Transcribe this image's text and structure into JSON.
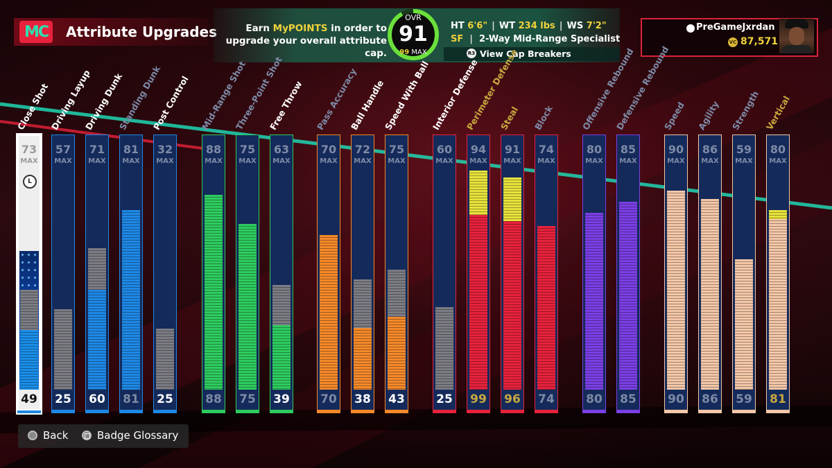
{
  "header": {
    "logo": "MC",
    "title": "Attribute Upgrades",
    "earn_pre": "Earn ",
    "earn_highlight": "MyPOINTS",
    "earn_post": " in order to upgrade your overall attribute cap.",
    "ovr_label": "OVR",
    "ovr_value": "91",
    "ovr_max_num": "99",
    "ovr_max_label": "MAX",
    "ht_label": "HT",
    "ht_value": "6'6\"",
    "wt_label": "WT",
    "wt_value": "234 lbs",
    "ws_label": "WS",
    "ws_value": "7'2\"",
    "position": "SF",
    "archetype": "2-Way Mid-Range Specialist",
    "cap_button_icon": "R3",
    "cap_button_label": "View Cap Breakers"
  },
  "user": {
    "username": "PreGameJxrdan",
    "vc_icon": "VC",
    "vc_amount": "87,571"
  },
  "max_label": "MAX",
  "lstick_label": "L",
  "attributes": [
    {
      "name": "Close Shot",
      "max": 73,
      "current": 49,
      "base": 0,
      "color": "#1e88e5",
      "selected": true,
      "name_color": "#ffffff",
      "current_color": "#111111",
      "cap": 0
    },
    {
      "name": "Driving Layup",
      "max": 57,
      "current": 25,
      "base": 0,
      "color": "#1e88e5",
      "name_color": "#ffffff",
      "current_color": "#ffffff",
      "cap": 0
    },
    {
      "name": "Driving Dunk",
      "max": 71,
      "current": 60,
      "base": 45,
      "color": "#1e88e5",
      "name_color": "#ffffff",
      "current_color": "#ffffff",
      "cap": 0
    },
    {
      "name": "Standing Dunk",
      "max": 81,
      "current": 81,
      "base": 81,
      "color": "#1e88e5",
      "name_color": "#7d8aa6",
      "current_color": "#7d8aa6",
      "cap": 0
    },
    {
      "name": "Post Control",
      "max": 32,
      "current": 25,
      "base": 0,
      "color": "#1e88e5",
      "name_color": "#ffffff",
      "current_color": "#ffffff",
      "cap": 0
    },
    {
      "name": "Mid-Range Shot",
      "max": 88,
      "current": 88,
      "base": 88,
      "color": "#2ecc5f",
      "name_color": "#7d8aa6",
      "current_color": "#7d8aa6",
      "cap": 0
    },
    {
      "name": "Three-Point Shot",
      "max": 75,
      "current": 75,
      "base": 75,
      "color": "#2ecc5f",
      "name_color": "#7d8aa6",
      "current_color": "#7d8aa6",
      "cap": 0
    },
    {
      "name": "Free Throw",
      "max": 63,
      "current": 39,
      "base": 29,
      "color": "#2ecc5f",
      "name_color": "#ffffff",
      "current_color": "#ffffff",
      "cap": 0
    },
    {
      "name": "Pass Accuracy",
      "max": 70,
      "current": 70,
      "base": 70,
      "color": "#f5892a",
      "name_color": "#7d8aa6",
      "current_color": "#7d8aa6",
      "cap": 0
    },
    {
      "name": "Ball Handle",
      "max": 72,
      "current": 38,
      "base": 28,
      "color": "#f5892a",
      "name_color": "#ffffff",
      "current_color": "#ffffff",
      "cap": 0
    },
    {
      "name": "Speed With Ball",
      "max": 75,
      "current": 43,
      "base": 33,
      "color": "#f5892a",
      "name_color": "#ffffff",
      "current_color": "#ffffff",
      "cap": 0
    },
    {
      "name": "Interior Defense",
      "max": 60,
      "current": 25,
      "base": 0,
      "color": "#e8223c",
      "name_color": "#ffffff",
      "current_color": "#ffffff",
      "cap": 0
    },
    {
      "name": "Perimeter Defense",
      "max": 94,
      "current": 99,
      "base": 94,
      "color": "#e8223c",
      "name_color": "#c8a840",
      "current_color": "#c8a840",
      "cap": 5
    },
    {
      "name": "Steal",
      "max": 91,
      "current": 96,
      "base": 91,
      "color": "#e8223c",
      "name_color": "#c8a840",
      "current_color": "#c8a840",
      "cap": 5
    },
    {
      "name": "Block",
      "max": 74,
      "current": 74,
      "base": 74,
      "color": "#e8223c",
      "name_color": "#7d8aa6",
      "current_color": "#7d8aa6",
      "cap": 0
    },
    {
      "name": "Offensive Rebound",
      "max": 80,
      "current": 80,
      "base": 80,
      "color": "#7b3fe4",
      "name_color": "#7d8aa6",
      "current_color": "#7d8aa6",
      "cap": 0
    },
    {
      "name": "Defensive Rebound",
      "max": 85,
      "current": 85,
      "base": 85,
      "color": "#7b3fe4",
      "name_color": "#7d8aa6",
      "current_color": "#7d8aa6",
      "cap": 0
    },
    {
      "name": "Speed",
      "max": 90,
      "current": 90,
      "base": 90,
      "color": "#f4c7a8",
      "name_color": "#7d8aa6",
      "current_color": "#7d8aa6",
      "cap": 0
    },
    {
      "name": "Agility",
      "max": 86,
      "current": 86,
      "base": 86,
      "color": "#f4c7a8",
      "name_color": "#7d8aa6",
      "current_color": "#7d8aa6",
      "cap": 0
    },
    {
      "name": "Strength",
      "max": 59,
      "current": 59,
      "base": 59,
      "color": "#f4c7a8",
      "name_color": "#7d8aa6",
      "current_color": "#7d8aa6",
      "cap": 0
    },
    {
      "name": "Vertical",
      "max": 80,
      "current": 81,
      "base": 80,
      "color": "#f4c7a8",
      "name_color": "#c8a840",
      "current_color": "#c8a840",
      "cap": 1
    }
  ],
  "footer": {
    "back_label": "Back",
    "glossary_label": "Badge Glossary"
  }
}
